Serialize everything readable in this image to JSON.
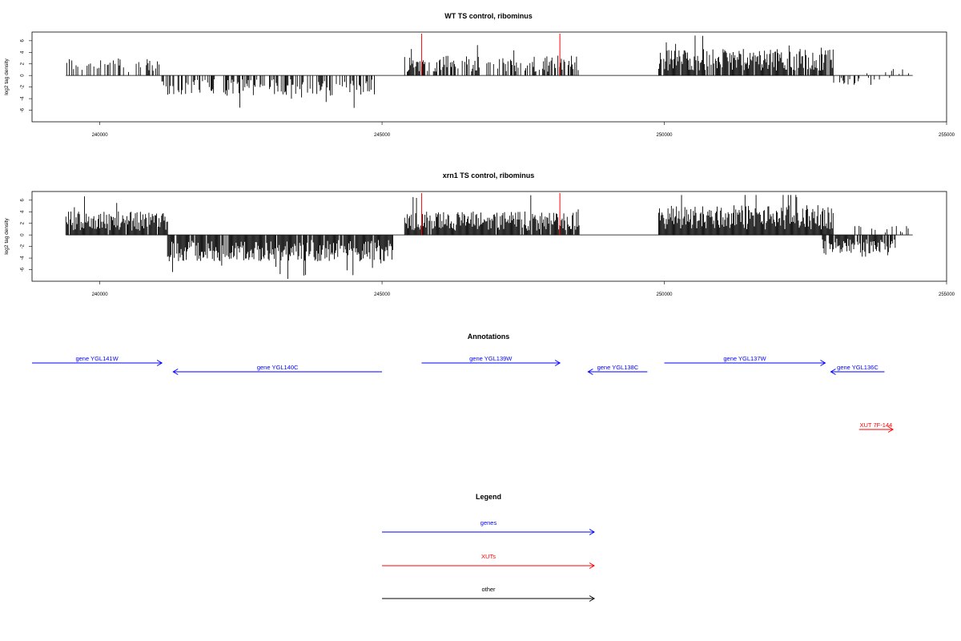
{
  "colors": {
    "genes": "#0000ff",
    "xuts": "#ff0000",
    "other": "#000000",
    "signal": "#000000",
    "marker": "#ff0000"
  },
  "chart_data": [
    {
      "type": "bar",
      "title": "WT TS control, ribominus",
      "ylabel": "log2 tag density",
      "xlim": [
        238800,
        255000
      ],
      "ylim": [
        -8,
        7.5
      ],
      "xticks": [
        240000,
        245000,
        250000,
        255000
      ],
      "yticks": [
        6,
        4,
        2,
        0,
        -2,
        -4,
        -6
      ],
      "red_markers": [
        245700,
        248150
      ],
      "segments": [
        {
          "start": 239400,
          "end": 241100,
          "sign": 1,
          "level": 2.3,
          "density": 0.35
        },
        {
          "start": 241100,
          "end": 244900,
          "sign": -1,
          "level": 2.6,
          "density": 0.55
        },
        {
          "start": 245400,
          "end": 248500,
          "sign": 1,
          "level": 2.6,
          "density": 0.55
        },
        {
          "start": 249900,
          "end": 253000,
          "sign": 1,
          "level": 3.4,
          "density": 0.9
        },
        {
          "start": 253000,
          "end": 254200,
          "sign": -1,
          "level": 1.2,
          "density": 0.2
        },
        {
          "start": 253500,
          "end": 254400,
          "sign": 1,
          "level": 1.0,
          "density": 0.12
        }
      ]
    },
    {
      "type": "bar",
      "title": "xrn1 TS control, ribominus",
      "ylabel": "log2 tag density",
      "xlim": [
        238800,
        255000
      ],
      "ylim": [
        -8,
        7.5
      ],
      "xticks": [
        240000,
        245000,
        250000,
        255000
      ],
      "yticks": [
        6,
        4,
        2,
        0,
        -2,
        -4,
        -6
      ],
      "red_markers": [
        245700,
        248150
      ],
      "segments": [
        {
          "start": 239400,
          "end": 241200,
          "sign": 1,
          "level": 3.0,
          "density": 0.95
        },
        {
          "start": 241200,
          "end": 245200,
          "sign": -1,
          "level": 3.4,
          "density": 0.95
        },
        {
          "start": 245400,
          "end": 248500,
          "sign": 1,
          "level": 3.0,
          "density": 0.95
        },
        {
          "start": 249900,
          "end": 253000,
          "sign": 1,
          "level": 3.8,
          "density": 1.0
        },
        {
          "start": 252800,
          "end": 254100,
          "sign": -1,
          "level": 2.4,
          "density": 0.8
        },
        {
          "start": 253300,
          "end": 254400,
          "sign": 1,
          "level": 1.3,
          "density": 0.25
        }
      ]
    }
  ],
  "annotations": {
    "title": "Annotations",
    "features": [
      {
        "label": "gene YGL141W",
        "start": 238800,
        "end": 241100,
        "strand": "+",
        "kind": "genes",
        "row": 0
      },
      {
        "label": "gene YGL140C",
        "start": 241300,
        "end": 245000,
        "strand": "-",
        "kind": "genes",
        "row": 1
      },
      {
        "label": "gene YGL139W",
        "start": 245700,
        "end": 248150,
        "strand": "+",
        "kind": "genes",
        "row": 0
      },
      {
        "label": "gene YGL138C",
        "start": 248650,
        "end": 249700,
        "strand": "-",
        "kind": "genes",
        "row": 1
      },
      {
        "label": "gene YGL137W",
        "start": 250000,
        "end": 252850,
        "strand": "+",
        "kind": "genes",
        "row": 0
      },
      {
        "label": "gene YGL136C",
        "start": 252950,
        "end": 253900,
        "strand": "-",
        "kind": "genes",
        "row": 1
      },
      {
        "label": "XUT 7F-144",
        "start": 253450,
        "end": 254050,
        "strand": "+",
        "kind": "xuts",
        "row": 2
      }
    ]
  },
  "legend": {
    "title": "Legend",
    "entries": [
      {
        "label": "genes",
        "kind": "genes"
      },
      {
        "label": "XUTs",
        "kind": "xuts"
      },
      {
        "label": "other",
        "kind": "other"
      }
    ]
  }
}
